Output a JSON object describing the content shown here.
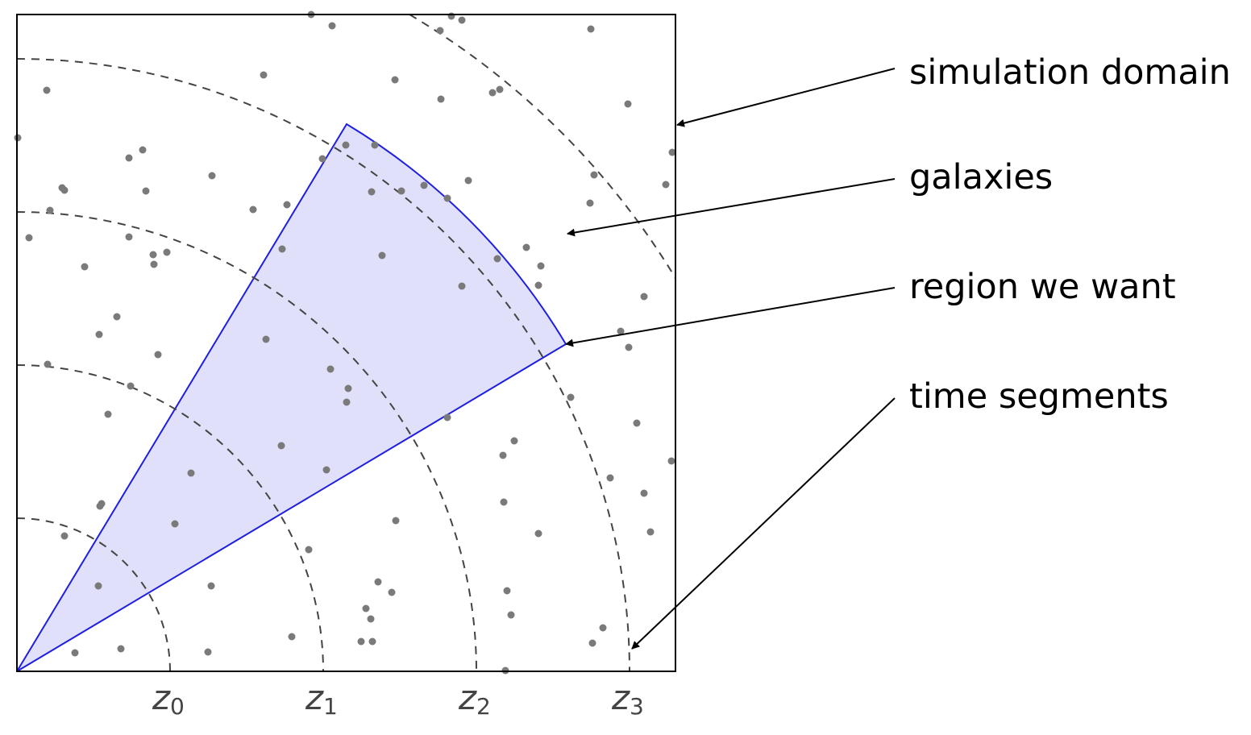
{
  "annotations": {
    "simulation_domain": "simulation domain",
    "galaxies": "galaxies",
    "region_we_want": "region we want",
    "time_segments": "time segments"
  },
  "axis_labels": [
    {
      "base": "z",
      "sub": "0"
    },
    {
      "base": "z",
      "sub": "1"
    },
    {
      "base": "z",
      "sub": "2"
    },
    {
      "base": "z",
      "sub": "3"
    }
  ],
  "colors": {
    "region_fill": "#e0e0fa",
    "region_stroke": "#1f1fe0",
    "galaxy_dot": "#7a7a7a",
    "dashed_arc": "#444444",
    "domain_border": "#000000"
  }
}
